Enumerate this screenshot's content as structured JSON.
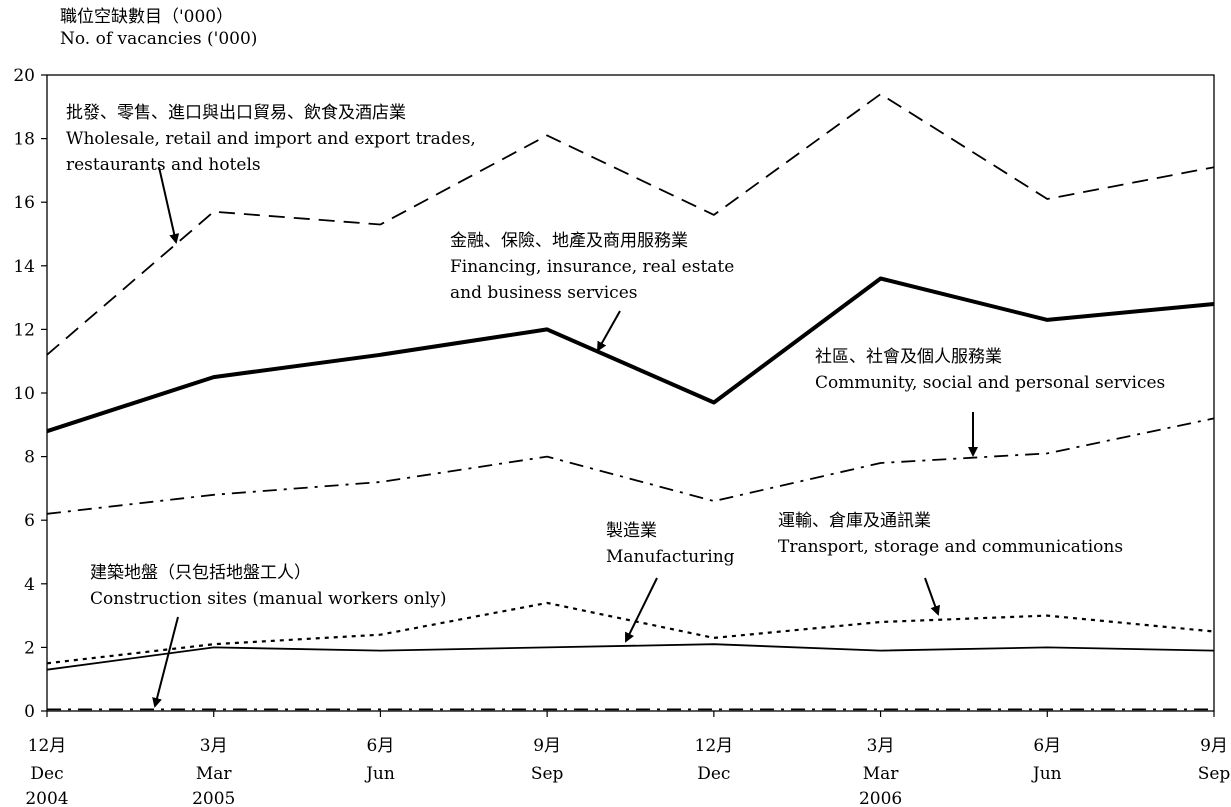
{
  "chart_data": {
    "type": "line",
    "ylabel_zh": "職位空缺數目（'000）",
    "ylabel_en": "No. of vacancies ('000)",
    "ylim": [
      0,
      20
    ],
    "yticks": [
      0,
      2,
      4,
      6,
      8,
      10,
      12,
      14,
      16,
      18,
      20
    ],
    "categories": [
      {
        "zh": "12月",
        "en": "Dec",
        "year": "2004"
      },
      {
        "zh": "3月",
        "en": "Mar",
        "year": "2005"
      },
      {
        "zh": "6月",
        "en": "Jun",
        "year": ""
      },
      {
        "zh": "9月",
        "en": "Sep",
        "year": ""
      },
      {
        "zh": "12月",
        "en": "Dec",
        "year": ""
      },
      {
        "zh": "3月",
        "en": "Mar",
        "year": "2006"
      },
      {
        "zh": "6月",
        "en": "Jun",
        "year": ""
      },
      {
        "zh": "9月",
        "en": "Sep",
        "year": ""
      }
    ],
    "series": [
      {
        "name": "Wholesale, retail and import and export trades, restaurants and hotels",
        "values": [
          11.2,
          15.7,
          15.3,
          18.1,
          15.6,
          19.4,
          16.1,
          17.1
        ],
        "style": "dashed",
        "color": "#000000"
      },
      {
        "name": "Financing, insurance, real estate and business services",
        "values": [
          8.8,
          10.5,
          11.2,
          12.0,
          9.7,
          13.6,
          12.3,
          12.8
        ],
        "style": "thick",
        "color": "#000000"
      },
      {
        "name": "Community, social and personal services",
        "values": [
          6.2,
          6.8,
          7.2,
          8.0,
          6.6,
          7.8,
          8.1,
          9.2
        ],
        "style": "dash-dot",
        "color": "#000000"
      },
      {
        "name": "Transport, storage and communications",
        "values": [
          1.5,
          2.1,
          2.4,
          3.4,
          2.3,
          2.8,
          3.0,
          2.5
        ],
        "style": "dotted",
        "color": "#000000"
      },
      {
        "name": "Manufacturing",
        "values": [
          1.3,
          2.0,
          1.9,
          2.0,
          2.1,
          1.9,
          2.0,
          1.9
        ],
        "style": "solid",
        "color": "#000000"
      },
      {
        "name": "Construction sites (manual workers only)",
        "values": [
          0.05,
          0.05,
          0.05,
          0.05,
          0.05,
          0.05,
          0.05,
          0.05
        ],
        "style": "dash-dot",
        "color": "#000000"
      }
    ],
    "annotations": [
      {
        "id": "wholesale",
        "zh": "批發、零售、進口與出口貿易、飲食及酒店業",
        "en": [
          "Wholesale, retail and import and export trades,",
          "restaurants and hotels"
        ]
      },
      {
        "id": "financing",
        "zh": "金融、保險、地產及商用服務業",
        "en": [
          "Financing, insurance, real estate",
          "and business services"
        ]
      },
      {
        "id": "community",
        "zh": "社區、社會及個人服務業",
        "en": [
          "Community, social and personal services"
        ]
      },
      {
        "id": "manufacturing",
        "zh": "製造業",
        "en": [
          "Manufacturing"
        ]
      },
      {
        "id": "transport",
        "zh": "運輸、倉庫及通訊業",
        "en": [
          "Transport, storage and communications"
        ]
      },
      {
        "id": "construction",
        "zh": "建築地盤（只包括地盤工人）",
        "en": [
          "Construction sites (manual workers only)"
        ]
      }
    ]
  }
}
